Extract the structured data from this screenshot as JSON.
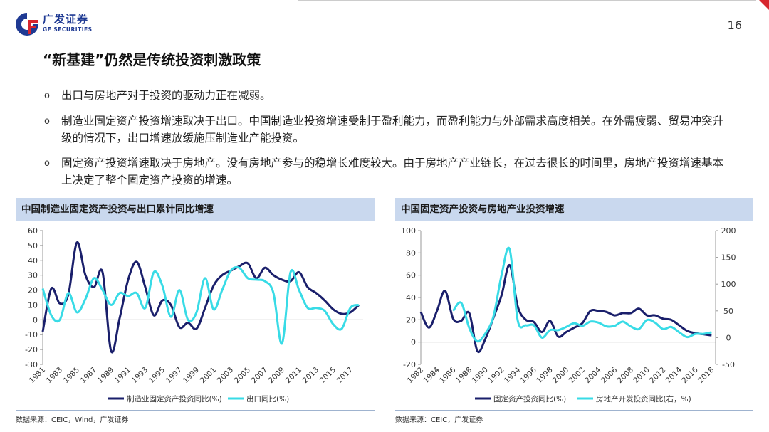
{
  "header": {
    "logo_text": "广发证券",
    "logo_sub": "GF SECURITIES",
    "page_number": "16",
    "accent_color": "#d7262e",
    "brand_color": "#1f3a93"
  },
  "title": "“新基建”仍然是传统投资刺激政策",
  "bullets": [
    "出口与房地产对于投资的驱动力正在减弱。",
    "制造业固定资产投资增速取决于出口。中国制造业投资增速受制于盈利能力，而盈利能力与外部需求高度相关。在外需疲弱、贸易冲突升级的情况下，出口增速放缓施压制造业产能投资。",
    "固定资产投资增速取决于房地产。没有房地产参与的稳增长难度较大。由于房地产产业链长，在过去很长的时间里，房地产投资增速基本上决定了整个固定资产投资的增速。"
  ],
  "bullet_marker": "o",
  "charts": {
    "left": {
      "header": "中国制造业固定资产投资与出口累计同比增速",
      "source": "数据来源：CEIC，Wind，广发证券"
    },
    "right": {
      "header": "中国固定资产投资与房地产业投资增速",
      "source": "数据来源：CEIC，广发证券"
    }
  },
  "chart_data": [
    {
      "type": "line",
      "title": "中国制造业固定资产投资与出口累计同比增速",
      "ylim": [
        -30,
        60
      ],
      "yticks": [
        -30,
        -20,
        -10,
        0,
        10,
        20,
        30,
        40,
        50,
        60
      ],
      "x_range": [
        1981,
        2018.5
      ],
      "xtick_labels": [
        "1981",
        "1983",
        "1985",
        "1987",
        "1989",
        "1991",
        "1993",
        "1995",
        "1997",
        "1999",
        "2001",
        "2003",
        "2005",
        "2007",
        "2009",
        "2011",
        "2013",
        "2015",
        "2017"
      ],
      "grid": false,
      "legend_position": "bottom",
      "series": [
        {
          "name": "制造业固定资产投资同比(%)",
          "color": "#1a1f6b",
          "axis": "left",
          "points": [
            [
              1981,
              -8
            ],
            [
              1982,
              21
            ],
            [
              1983,
              11
            ],
            [
              1984,
              17
            ],
            [
              1985,
              52
            ],
            [
              1986,
              30
            ],
            [
              1987,
              22
            ],
            [
              1988,
              32
            ],
            [
              1989,
              -21
            ],
            [
              1990,
              1
            ],
            [
              1991,
              27
            ],
            [
              1992,
              39
            ],
            [
              1993,
              22
            ],
            [
              1994,
              3
            ],
            [
              1995,
              13
            ],
            [
              1996,
              10
            ],
            [
              1997,
              -5
            ],
            [
              1998,
              -2
            ],
            [
              1999,
              -6
            ],
            [
              2000,
              8
            ],
            [
              2001,
              23
            ],
            [
              2002,
              30
            ],
            [
              2003,
              33
            ],
            [
              2004,
              36
            ],
            [
              2005,
              38
            ],
            [
              2006,
              28
            ],
            [
              2007,
              35
            ],
            [
              2008,
              30
            ],
            [
              2009,
              27
            ],
            [
              2010,
              26
            ],
            [
              2011,
              32
            ],
            [
              2012,
              22
            ],
            [
              2013,
              18
            ],
            [
              2014,
              13
            ],
            [
              2015,
              7
            ],
            [
              2016,
              4
            ],
            [
              2017,
              5
            ],
            [
              2018,
              10
            ]
          ]
        },
        {
          "name": "出口同比(%)",
          "color": "#38dbe6",
          "axis": "left",
          "points": [
            [
              1981,
              21
            ],
            [
              1982,
              3
            ],
            [
              1983,
              0
            ],
            [
              1984,
              18
            ],
            [
              1985,
              5
            ],
            [
              1986,
              14
            ],
            [
              1987,
              28
            ],
            [
              1988,
              20
            ],
            [
              1989,
              10
            ],
            [
              1990,
              18
            ],
            [
              1991,
              16
            ],
            [
              1992,
              18
            ],
            [
              1993,
              8
            ],
            [
              1994,
              32
            ],
            [
              1995,
              23
            ],
            [
              1996,
              2
            ],
            [
              1997,
              20
            ],
            [
              1998,
              0
            ],
            [
              1999,
              5
            ],
            [
              2000,
              28
            ],
            [
              2001,
              7
            ],
            [
              2002,
              20
            ],
            [
              2003,
              33
            ],
            [
              2004,
              35
            ],
            [
              2005,
              28
            ],
            [
              2006,
              27
            ],
            [
              2007,
              26
            ],
            [
              2008,
              18
            ],
            [
              2009,
              -16
            ],
            [
              2010,
              32
            ],
            [
              2011,
              20
            ],
            [
              2012,
              8
            ],
            [
              2013,
              8
            ],
            [
              2014,
              6
            ],
            [
              2015,
              -3
            ],
            [
              2016,
              -6
            ],
            [
              2017,
              8
            ],
            [
              2018,
              10
            ]
          ]
        }
      ]
    },
    {
      "type": "line",
      "title": "中国固定资产投资与房地产业投资增速",
      "ylim": [
        -20,
        100
      ],
      "yticks": [
        -20,
        0,
        20,
        40,
        60,
        80,
        100
      ],
      "y2lim": [
        -50,
        200
      ],
      "y2ticks": [
        -50,
        0,
        50,
        100,
        150,
        200
      ],
      "x_range": [
        1982,
        2018.5
      ],
      "xtick_labels": [
        "1982",
        "1984",
        "1986",
        "1988",
        "1990",
        "1992",
        "1994",
        "1996",
        "1998",
        "2000",
        "2002",
        "2004",
        "2006",
        "2008",
        "2010",
        "2012",
        "2014",
        "2016",
        "2018"
      ],
      "grid": false,
      "legend_position": "bottom",
      "series": [
        {
          "name": "固定资产投资同比(%)",
          "color": "#1a1f6b",
          "axis": "left",
          "points": [
            [
              1982,
              27
            ],
            [
              1983,
              13
            ],
            [
              1984,
              28
            ],
            [
              1985,
              46
            ],
            [
              1986,
              21
            ],
            [
              1987,
              19
            ],
            [
              1988,
              26
            ],
            [
              1989,
              -8
            ],
            [
              1990,
              3
            ],
            [
              1991,
              22
            ],
            [
              1992,
              42
            ],
            [
              1993,
              69
            ],
            [
              1994,
              32
            ],
            [
              1995,
              20
            ],
            [
              1996,
              18
            ],
            [
              1997,
              9
            ],
            [
              1998,
              19
            ],
            [
              1999,
              5
            ],
            [
              2000,
              9
            ],
            [
              2001,
              13
            ],
            [
              2002,
              17
            ],
            [
              2003,
              28
            ],
            [
              2004,
              28
            ],
            [
              2005,
              27
            ],
            [
              2006,
              24
            ],
            [
              2007,
              26
            ],
            [
              2008,
              26
            ],
            [
              2009,
              30
            ],
            [
              2010,
              24
            ],
            [
              2011,
              24
            ],
            [
              2012,
              21
            ],
            [
              2013,
              20
            ],
            [
              2014,
              15
            ],
            [
              2015,
              10
            ],
            [
              2016,
              8
            ],
            [
              2017,
              7
            ],
            [
              2018,
              6
            ]
          ]
        },
        {
          "name": "房地产开发投资同比(右，%)",
          "color": "#38dbe6",
          "axis": "right",
          "points": [
            [
              1986,
              50
            ],
            [
              1987,
              65
            ],
            [
              1988,
              18
            ],
            [
              1989,
              -7
            ],
            [
              1990,
              8
            ],
            [
              1991,
              40
            ],
            [
              1992,
              117
            ],
            [
              1993,
              165
            ],
            [
              1994,
              32
            ],
            [
              1995,
              23
            ],
            [
              1996,
              23
            ],
            [
              1997,
              0
            ],
            [
              1998,
              14
            ],
            [
              1999,
              14
            ],
            [
              2000,
              20
            ],
            [
              2001,
              27
            ],
            [
              2002,
              22
            ],
            [
              2003,
              30
            ],
            [
              2004,
              28
            ],
            [
              2005,
              21
            ],
            [
              2006,
              22
            ],
            [
              2007,
              30
            ],
            [
              2008,
              21
            ],
            [
              2009,
              16
            ],
            [
              2010,
              33
            ],
            [
              2011,
              28
            ],
            [
              2012,
              16
            ],
            [
              2013,
              20
            ],
            [
              2014,
              10
            ],
            [
              2015,
              1
            ],
            [
              2016,
              7
            ],
            [
              2017,
              7
            ],
            [
              2018,
              10
            ]
          ]
        }
      ]
    }
  ]
}
